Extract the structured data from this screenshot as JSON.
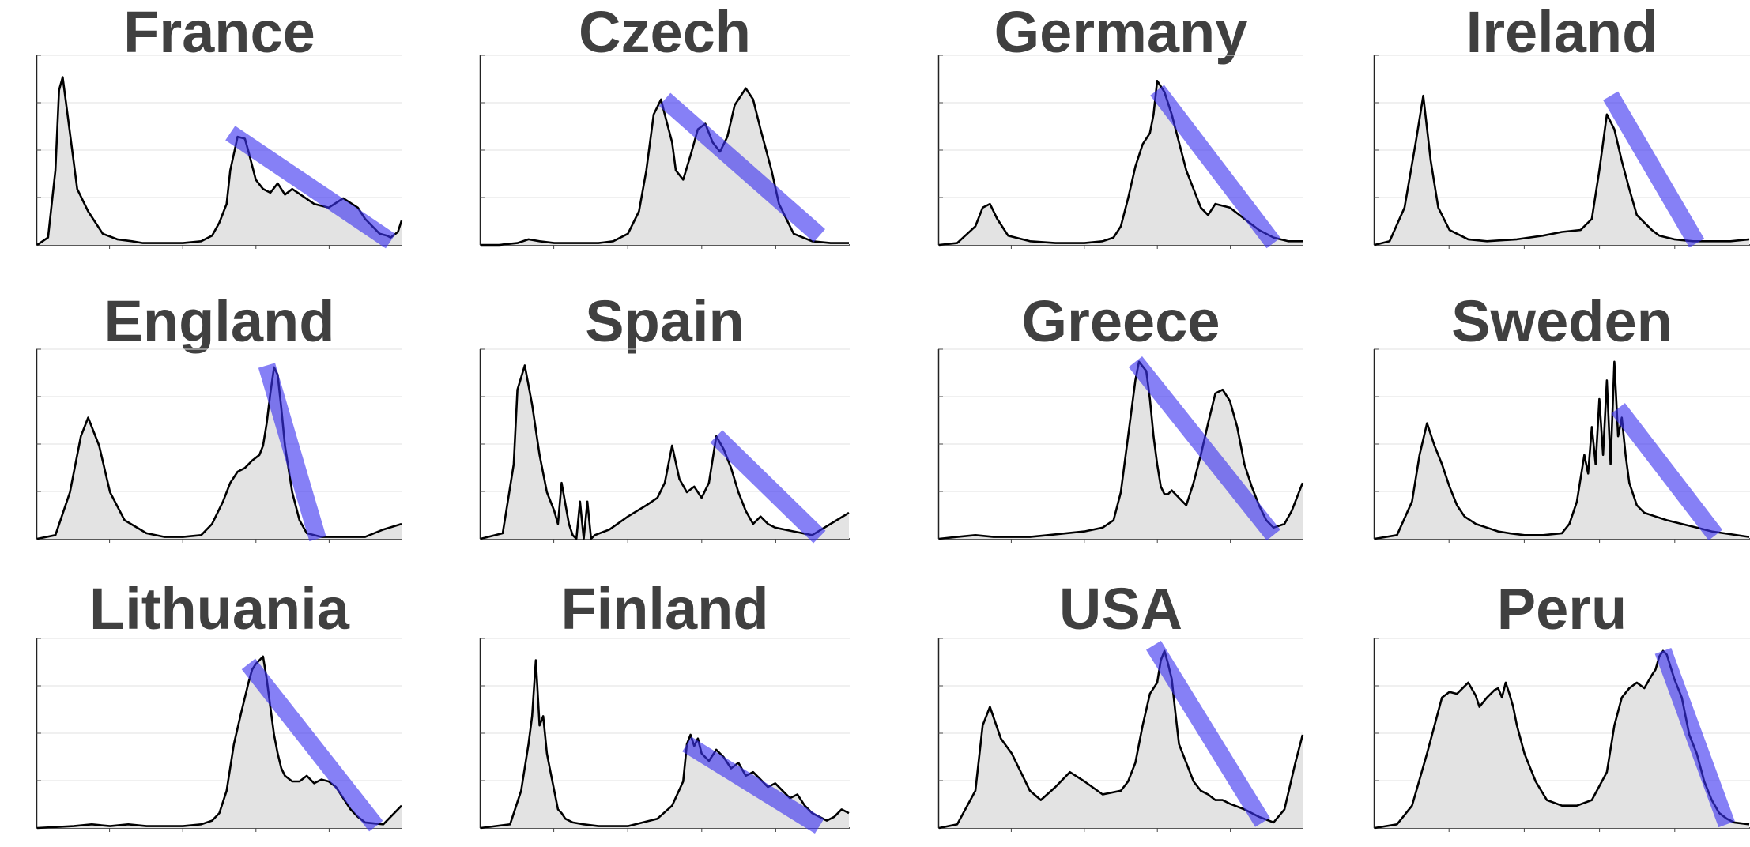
{
  "chart_data": [
    {
      "type": "area",
      "title": "France",
      "x": [
        0,
        3,
        5,
        6,
        7,
        9,
        11,
        14,
        18,
        22,
        26,
        29,
        33,
        40,
        45,
        48,
        50,
        52,
        53,
        55,
        57,
        58,
        60,
        62,
        64,
        66,
        68,
        70,
        73,
        76,
        80,
        84,
        88,
        90,
        92,
        94,
        96,
        97,
        99,
        100
      ],
      "y": [
        0,
        4,
        40,
        83,
        90,
        60,
        30,
        18,
        6,
        3,
        2,
        1,
        1,
        1,
        2,
        5,
        12,
        22,
        40,
        58,
        57,
        50,
        35,
        30,
        28,
        33,
        27,
        30,
        26,
        22,
        20,
        25,
        20,
        14,
        10,
        6,
        5,
        4,
        7,
        13
      ],
      "trend": [
        [
          53,
          60
        ],
        [
          97,
          2
        ]
      ]
    },
    {
      "type": "area",
      "title": "Czech",
      "x": [
        0,
        5,
        10,
        13,
        16,
        20,
        26,
        32,
        36,
        40,
        43,
        45,
        47,
        49,
        50,
        52,
        53,
        55,
        57,
        59,
        61,
        63,
        65,
        67,
        69,
        72,
        74,
        76,
        79,
        81,
        85,
        90,
        95,
        100
      ],
      "y": [
        0,
        0,
        1,
        3,
        2,
        1,
        1,
        1,
        2,
        6,
        18,
        40,
        70,
        78,
        70,
        55,
        40,
        35,
        48,
        62,
        65,
        55,
        50,
        58,
        75,
        84,
        78,
        62,
        40,
        22,
        6,
        2,
        1,
        1
      ],
      "trend": [
        [
          50,
          78
        ],
        [
          92,
          5
        ]
      ]
    },
    {
      "type": "area",
      "title": "Germany",
      "x": [
        0,
        5,
        10,
        12,
        14,
        16,
        19,
        25,
        32,
        40,
        45,
        48,
        50,
        52,
        54,
        56,
        58,
        59,
        60,
        62,
        64,
        66,
        68,
        70,
        72,
        74,
        76,
        80,
        84,
        88,
        92,
        96,
        100
      ],
      "y": [
        0,
        1,
        10,
        20,
        22,
        14,
        5,
        2,
        1,
        1,
        2,
        4,
        10,
        25,
        42,
        54,
        60,
        70,
        88,
        82,
        70,
        55,
        40,
        30,
        20,
        16,
        22,
        20,
        14,
        8,
        4,
        2,
        2
      ],
      "trend": [
        [
          60,
          83
        ],
        [
          92,
          1
        ]
      ]
    },
    {
      "type": "area",
      "title": "Ireland",
      "x": [
        0,
        4,
        8,
        11,
        13,
        15,
        17,
        20,
        25,
        30,
        38,
        45,
        50,
        55,
        58,
        60,
        62,
        64,
        66,
        68,
        70,
        72,
        74,
        76,
        80,
        85,
        90,
        95,
        100
      ],
      "y": [
        0,
        2,
        20,
        55,
        80,
        45,
        20,
        8,
        3,
        2,
        3,
        5,
        7,
        8,
        14,
        40,
        70,
        62,
        45,
        30,
        16,
        12,
        8,
        5,
        3,
        2,
        2,
        2,
        3
      ],
      "trend": [
        [
          63,
          80
        ],
        [
          86,
          1
        ]
      ]
    },
    {
      "type": "area",
      "title": "England",
      "x": [
        0,
        5,
        9,
        12,
        14,
        17,
        20,
        24,
        30,
        35,
        40,
        45,
        48,
        51,
        53,
        55,
        57,
        59,
        61,
        62,
        63,
        64,
        65,
        66,
        67,
        68,
        70,
        72,
        74,
        78,
        82,
        86,
        90,
        95,
        100
      ],
      "y": [
        0,
        2,
        25,
        55,
        65,
        50,
        25,
        10,
        3,
        1,
        1,
        2,
        8,
        20,
        30,
        36,
        38,
        42,
        45,
        50,
        62,
        78,
        92,
        88,
        70,
        50,
        25,
        10,
        3,
        1,
        1,
        1,
        1,
        5,
        8
      ],
      "trend": [
        [
          63,
          93
        ],
        [
          77,
          0
        ]
      ]
    },
    {
      "type": "area",
      "title": "Spain",
      "x": [
        0,
        6,
        9,
        10,
        12,
        14,
        16,
        18,
        20,
        21,
        22,
        24,
        25,
        26,
        27,
        28,
        29,
        30,
        31,
        35,
        40,
        45,
        48,
        50,
        52,
        54,
        56,
        58,
        60,
        62,
        64,
        66,
        68,
        70,
        72,
        74,
        76,
        78,
        80,
        85,
        90,
        95,
        100
      ],
      "y": [
        0,
        3,
        40,
        80,
        93,
        72,
        45,
        25,
        15,
        8,
        30,
        8,
        2,
        0,
        20,
        0,
        20,
        0,
        2,
        5,
        12,
        18,
        22,
        30,
        50,
        32,
        25,
        28,
        22,
        30,
        55,
        48,
        38,
        25,
        15,
        8,
        12,
        8,
        6,
        4,
        2,
        8,
        14
      ],
      "trend": [
        [
          64,
          55
        ],
        [
          92,
          1
        ]
      ]
    },
    {
      "type": "area",
      "title": "Greece",
      "x": [
        0,
        5,
        10,
        15,
        20,
        25,
        30,
        35,
        40,
        45,
        48,
        50,
        52,
        54,
        55,
        57,
        58,
        59,
        60,
        61,
        62,
        63,
        64,
        66,
        68,
        70,
        72,
        74,
        76,
        78,
        80,
        82,
        84,
        86,
        88,
        90,
        92,
        95,
        97,
        100
      ],
      "y": [
        0,
        1,
        2,
        1,
        1,
        1,
        2,
        3,
        4,
        6,
        10,
        25,
        55,
        85,
        95,
        90,
        75,
        55,
        40,
        28,
        24,
        24,
        26,
        22,
        18,
        30,
        45,
        62,
        78,
        80,
        74,
        60,
        40,
        28,
        18,
        10,
        6,
        8,
        15,
        30
      ],
      "trend": [
        [
          54,
          95
        ],
        [
          92,
          2
        ]
      ]
    },
    {
      "type": "area",
      "title": "Sweden",
      "x": [
        0,
        6,
        10,
        12,
        14,
        16,
        18,
        20,
        22,
        24,
        27,
        30,
        33,
        36,
        40,
        45,
        50,
        52,
        54,
        56,
        57,
        58,
        59,
        60,
        61,
        62,
        63,
        64,
        65,
        66,
        67,
        68,
        70,
        72,
        75,
        78,
        82,
        86,
        90,
        100
      ],
      "y": [
        0,
        2,
        20,
        45,
        62,
        50,
        40,
        28,
        18,
        12,
        8,
        6,
        4,
        3,
        2,
        2,
        3,
        8,
        20,
        45,
        35,
        60,
        40,
        75,
        45,
        85,
        40,
        95,
        55,
        65,
        45,
        30,
        18,
        14,
        12,
        10,
        8,
        6,
        4,
        1
      ],
      "trend": [
        [
          65,
          70
        ],
        [
          91,
          2
        ]
      ]
    },
    {
      "type": "area",
      "title": "Lithuania",
      "x": [
        0,
        10,
        15,
        20,
        25,
        30,
        40,
        45,
        48,
        50,
        52,
        54,
        56,
        58,
        59,
        60,
        61,
        62,
        63,
        64,
        65,
        66,
        67,
        68,
        70,
        72,
        74,
        76,
        78,
        80,
        82,
        84,
        86,
        88,
        90,
        95,
        100
      ],
      "y": [
        0,
        1,
        2,
        1,
        2,
        1,
        1,
        2,
        4,
        8,
        20,
        45,
        62,
        78,
        85,
        88,
        90,
        92,
        80,
        65,
        50,
        40,
        32,
        28,
        25,
        25,
        28,
        24,
        26,
        25,
        22,
        16,
        10,
        6,
        3,
        2,
        12
      ],
      "trend": [
        [
          58,
          88
        ],
        [
          93,
          1
        ]
      ]
    },
    {
      "type": "area",
      "title": "Finland",
      "x": [
        0,
        8,
        11,
        13,
        14,
        15,
        16,
        17,
        18,
        19,
        20,
        21,
        22,
        23,
        25,
        28,
        32,
        40,
        48,
        52,
        55,
        56,
        57,
        58,
        59,
        60,
        62,
        64,
        66,
        68,
        70,
        72,
        74,
        76,
        78,
        80,
        82,
        84,
        86,
        88,
        90,
        92,
        94,
        96,
        98,
        100
      ],
      "y": [
        0,
        2,
        20,
        45,
        60,
        90,
        55,
        60,
        40,
        30,
        20,
        10,
        8,
        5,
        3,
        2,
        1,
        1,
        5,
        12,
        25,
        45,
        50,
        44,
        48,
        40,
        36,
        42,
        38,
        32,
        35,
        28,
        30,
        26,
        22,
        24,
        20,
        16,
        18,
        12,
        8,
        6,
        4,
        6,
        10,
        8
      ],
      "trend": [
        [
          56,
          45
        ],
        [
          92,
          1
        ]
      ]
    },
    {
      "type": "area",
      "title": "USA",
      "x": [
        0,
        5,
        10,
        12,
        14,
        17,
        20,
        22,
        25,
        28,
        32,
        36,
        40,
        45,
        50,
        52,
        54,
        56,
        58,
        60,
        61,
        62,
        63,
        64,
        65,
        66,
        68,
        70,
        72,
        74,
        76,
        78,
        80,
        84,
        88,
        92,
        95,
        98,
        100
      ],
      "y": [
        0,
        2,
        20,
        55,
        65,
        48,
        40,
        32,
        20,
        15,
        22,
        30,
        25,
        18,
        20,
        25,
        35,
        55,
        72,
        78,
        90,
        95,
        88,
        80,
        62,
        45,
        35,
        25,
        20,
        18,
        15,
        15,
        13,
        10,
        6,
        3,
        10,
        35,
        50
      ],
      "trend": [
        [
          59,
          98
        ],
        [
          89,
          3
        ]
      ]
    },
    {
      "type": "area",
      "title": "Peru",
      "x": [
        0,
        6,
        10,
        14,
        18,
        20,
        22,
        25,
        27,
        28,
        30,
        32,
        33,
        34,
        35,
        36,
        37,
        38,
        40,
        43,
        46,
        50,
        54,
        58,
        62,
        64,
        66,
        68,
        70,
        72,
        74,
        75,
        76,
        77,
        78,
        80,
        82,
        84,
        86,
        88,
        90,
        92,
        94,
        96,
        100
      ],
      "y": [
        0,
        2,
        12,
        40,
        70,
        73,
        72,
        78,
        71,
        65,
        70,
        74,
        75,
        70,
        78,
        72,
        65,
        55,
        40,
        25,
        15,
        12,
        12,
        15,
        30,
        55,
        70,
        75,
        78,
        75,
        82,
        85,
        92,
        95,
        93,
        80,
        70,
        50,
        40,
        25,
        15,
        8,
        5,
        3,
        2
      ],
      "trend": [
        [
          77,
          95
        ],
        [
          94,
          2
        ]
      ]
    }
  ]
}
